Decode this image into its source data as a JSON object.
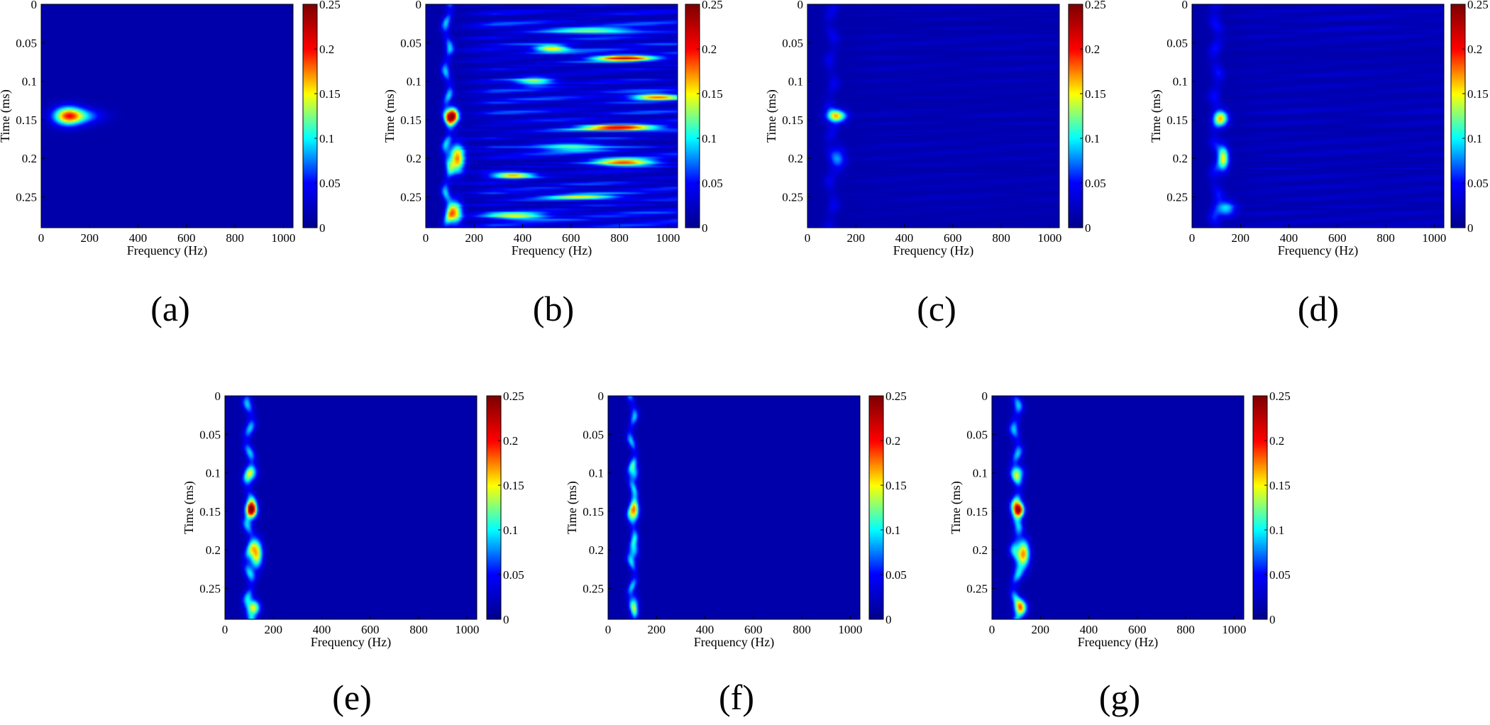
{
  "figure": {
    "panels": [
      {
        "id": "a",
        "caption": "(a)"
      },
      {
        "id": "b",
        "caption": "(b)"
      },
      {
        "id": "c",
        "caption": "(c)"
      },
      {
        "id": "d",
        "caption": "(d)"
      },
      {
        "id": "e",
        "caption": "(e)"
      },
      {
        "id": "f",
        "caption": "(f)"
      },
      {
        "id": "g",
        "caption": "(g)"
      }
    ]
  },
  "colormap": [
    "#00008f",
    "#0000ff",
    "#00ffff",
    "#ffff00",
    "#ff0000",
    "#800000"
  ],
  "background_color": "#1f2f8f",
  "chart_data": [
    {
      "type": "heatmap",
      "panel": "a",
      "xlabel": "Frequency (Hz)",
      "ylabel": "Time (ms)",
      "xlim": [
        0,
        1040
      ],
      "ylim": [
        0,
        0.29
      ],
      "xticks": [
        0,
        200,
        400,
        600,
        800,
        1000
      ],
      "yticks": [
        0,
        0.05,
        0.1,
        0.15,
        0.2,
        0.25
      ],
      "colorbar": {
        "min": 0,
        "max": 0.25,
        "ticks": [
          0,
          0.05,
          0.1,
          0.15,
          0.2,
          0.25
        ]
      },
      "features": [
        {
          "x": 110,
          "y": 0.145,
          "value": 0.16,
          "x_spread": 60,
          "y_spread": 0.012
        },
        {
          "x": 180,
          "y": 0.145,
          "value": 0.06,
          "x_spread": 80,
          "y_spread": 0.01
        }
      ],
      "vertical_band": null
    },
    {
      "type": "heatmap",
      "panel": "b",
      "xlabel": "Frequency (Hz)",
      "ylabel": "Time (ms)",
      "xlim": [
        0,
        1040
      ],
      "ylim": [
        0,
        0.29
      ],
      "xticks": [
        0,
        200,
        400,
        600,
        800,
        1000
      ],
      "yticks": [
        0,
        0.05,
        0.1,
        0.15,
        0.2,
        0.25
      ],
      "colorbar": {
        "min": 0,
        "max": 0.25,
        "ticks": [
          0,
          0.05,
          0.1,
          0.15,
          0.2,
          0.25
        ]
      },
      "features": [
        {
          "x": 110,
          "y": 0.145,
          "value": 0.23,
          "x_spread": 25,
          "y_spread": 0.01
        },
        {
          "x": 130,
          "y": 0.2,
          "value": 0.16,
          "x_spread": 30,
          "y_spread": 0.018
        },
        {
          "x": 120,
          "y": 0.27,
          "value": 0.14,
          "x_spread": 30,
          "y_spread": 0.015
        },
        {
          "x": 520,
          "y": 0.057,
          "value": 0.14,
          "x_spread": 70,
          "y_spread": 0.004
        },
        {
          "x": 820,
          "y": 0.07,
          "value": 0.19,
          "x_spread": 130,
          "y_spread": 0.004
        },
        {
          "x": 950,
          "y": 0.12,
          "value": 0.15,
          "x_spread": 100,
          "y_spread": 0.004
        },
        {
          "x": 800,
          "y": 0.16,
          "value": 0.2,
          "x_spread": 160,
          "y_spread": 0.004
        },
        {
          "x": 820,
          "y": 0.205,
          "value": 0.17,
          "x_spread": 130,
          "y_spread": 0.005
        },
        {
          "x": 360,
          "y": 0.222,
          "value": 0.15,
          "x_spread": 90,
          "y_spread": 0.004
        },
        {
          "x": 650,
          "y": 0.25,
          "value": 0.1,
          "x_spread": 150,
          "y_spread": 0.004
        },
        {
          "x": 450,
          "y": 0.1,
          "value": 0.1,
          "x_spread": 80,
          "y_spread": 0.006
        },
        {
          "x": 600,
          "y": 0.185,
          "value": 0.1,
          "x_spread": 150,
          "y_spread": 0.005
        },
        {
          "x": 380,
          "y": 0.275,
          "value": 0.12,
          "x_spread": 120,
          "y_spread": 0.004
        },
        {
          "x": 700,
          "y": 0.035,
          "value": 0.1,
          "x_spread": 200,
          "y_spread": 0.004
        }
      ],
      "vertical_band": {
        "x": 90,
        "value": 0.08,
        "x_spread": 18
      },
      "streak_level": 0.06
    },
    {
      "type": "heatmap",
      "panel": "c",
      "xlabel": "Frequency (Hz)",
      "ylabel": "Time (ms)",
      "xlim": [
        0,
        1040
      ],
      "ylim": [
        0,
        0.29
      ],
      "xticks": [
        0,
        200,
        400,
        600,
        800,
        1000
      ],
      "yticks": [
        0,
        0.05,
        0.1,
        0.15,
        0.2,
        0.25
      ],
      "colorbar": {
        "min": 0,
        "max": 0.25,
        "ticks": [
          0,
          0.05,
          0.1,
          0.15,
          0.2,
          0.25
        ]
      },
      "features": [
        {
          "x": 120,
          "y": 0.145,
          "value": 0.14,
          "x_spread": 40,
          "y_spread": 0.008
        },
        {
          "x": 130,
          "y": 0.2,
          "value": 0.05,
          "x_spread": 30,
          "y_spread": 0.015
        }
      ],
      "vertical_band": {
        "x": 100,
        "value": 0.03,
        "x_spread": 25
      },
      "streak_level": 0.015
    },
    {
      "type": "heatmap",
      "panel": "d",
      "xlabel": "Frequency (Hz)",
      "ylabel": "Time (ms)",
      "xlim": [
        0,
        1040
      ],
      "ylim": [
        0,
        0.29
      ],
      "xticks": [
        0,
        200,
        400,
        600,
        800,
        1000
      ],
      "yticks": [
        0,
        0.05,
        0.1,
        0.15,
        0.2,
        0.25
      ],
      "colorbar": {
        "min": 0,
        "max": 0.25,
        "ticks": [
          0,
          0.05,
          0.1,
          0.15,
          0.2,
          0.25
        ]
      },
      "features": [
        {
          "x": 120,
          "y": 0.148,
          "value": 0.12,
          "x_spread": 30,
          "y_spread": 0.01
        },
        {
          "x": 130,
          "y": 0.2,
          "value": 0.13,
          "x_spread": 22,
          "y_spread": 0.015
        },
        {
          "x": 140,
          "y": 0.265,
          "value": 0.08,
          "x_spread": 40,
          "y_spread": 0.01
        }
      ],
      "vertical_band": {
        "x": 100,
        "value": 0.04,
        "x_spread": 25
      },
      "streak_level": 0.02
    },
    {
      "type": "heatmap",
      "panel": "e",
      "xlabel": "Frequency (Hz)",
      "ylabel": "Time (ms)",
      "xlim": [
        0,
        1040
      ],
      "ylim": [
        0,
        0.29
      ],
      "xticks": [
        0,
        200,
        400,
        600,
        800,
        1000
      ],
      "yticks": [
        0,
        0.05,
        0.1,
        0.15,
        0.2,
        0.25
      ],
      "colorbar": {
        "min": 0,
        "max": 0.25,
        "ticks": [
          0,
          0.05,
          0.1,
          0.15,
          0.2,
          0.25
        ]
      },
      "features": [
        {
          "x": 110,
          "y": 0.148,
          "value": 0.22,
          "x_spread": 22,
          "y_spread": 0.01
        },
        {
          "x": 130,
          "y": 0.205,
          "value": 0.15,
          "x_spread": 25,
          "y_spread": 0.018
        },
        {
          "x": 120,
          "y": 0.275,
          "value": 0.13,
          "x_spread": 25,
          "y_spread": 0.01
        },
        {
          "x": 110,
          "y": 0.1,
          "value": 0.08,
          "x_spread": 25,
          "y_spread": 0.01
        }
      ],
      "vertical_band": {
        "x": 100,
        "value": 0.08,
        "x_spread": 20
      },
      "streak_level": 0
    },
    {
      "type": "heatmap",
      "panel": "f",
      "xlabel": "Frequency (Hz)",
      "ylabel": "Time (ms)",
      "xlim": [
        0,
        1040
      ],
      "ylim": [
        0,
        0.29
      ],
      "xticks": [
        0,
        200,
        400,
        600,
        800,
        1000
      ],
      "yticks": [
        0,
        0.05,
        0.1,
        0.15,
        0.2,
        0.25
      ],
      "colorbar": {
        "min": 0,
        "max": 0.25,
        "ticks": [
          0,
          0.05,
          0.1,
          0.15,
          0.2,
          0.25
        ]
      },
      "features": [
        {
          "x": 110,
          "y": 0.148,
          "value": 0.14,
          "x_spread": 18,
          "y_spread": 0.014
        },
        {
          "x": 110,
          "y": 0.1,
          "value": 0.07,
          "x_spread": 18,
          "y_spread": 0.012
        },
        {
          "x": 110,
          "y": 0.2,
          "value": 0.07,
          "x_spread": 18,
          "y_spread": 0.012
        },
        {
          "x": 110,
          "y": 0.27,
          "value": 0.07,
          "x_spread": 18,
          "y_spread": 0.012
        }
      ],
      "vertical_band": {
        "x": 100,
        "value": 0.08,
        "x_spread": 16
      },
      "streak_level": 0
    },
    {
      "type": "heatmap",
      "panel": "g",
      "xlabel": "Frequency (Hz)",
      "ylabel": "Time (ms)",
      "xlim": [
        0,
        1040
      ],
      "ylim": [
        0,
        0.29
      ],
      "xticks": [
        0,
        200,
        400,
        600,
        800,
        1000
      ],
      "yticks": [
        0,
        0.05,
        0.1,
        0.15,
        0.2,
        0.25
      ],
      "colorbar": {
        "min": 0,
        "max": 0.25,
        "ticks": [
          0,
          0.05,
          0.1,
          0.15,
          0.2,
          0.25
        ]
      },
      "features": [
        {
          "x": 110,
          "y": 0.148,
          "value": 0.22,
          "x_spread": 22,
          "y_spread": 0.01
        },
        {
          "x": 130,
          "y": 0.205,
          "value": 0.16,
          "x_spread": 25,
          "y_spread": 0.018
        },
        {
          "x": 120,
          "y": 0.275,
          "value": 0.14,
          "x_spread": 25,
          "y_spread": 0.01
        },
        {
          "x": 110,
          "y": 0.1,
          "value": 0.08,
          "x_spread": 25,
          "y_spread": 0.01
        }
      ],
      "vertical_band": {
        "x": 100,
        "value": 0.08,
        "x_spread": 20
      },
      "streak_level": 0
    }
  ]
}
